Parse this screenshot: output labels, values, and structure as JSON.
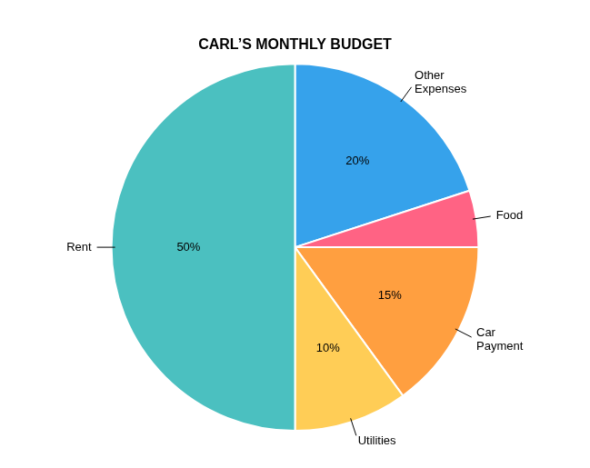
{
  "chart_data": {
    "type": "pie",
    "title": "CARL’S MONTHLY BUDGET",
    "categories": [
      "Other\nExpenses",
      "Food",
      "Car\nPayment",
      "Utilities",
      "Rent"
    ],
    "values": [
      20,
      5,
      15,
      10,
      50
    ],
    "value_labels": [
      "20%",
      null,
      "15%",
      "10%",
      "50%"
    ],
    "data_labels": true
  }
}
